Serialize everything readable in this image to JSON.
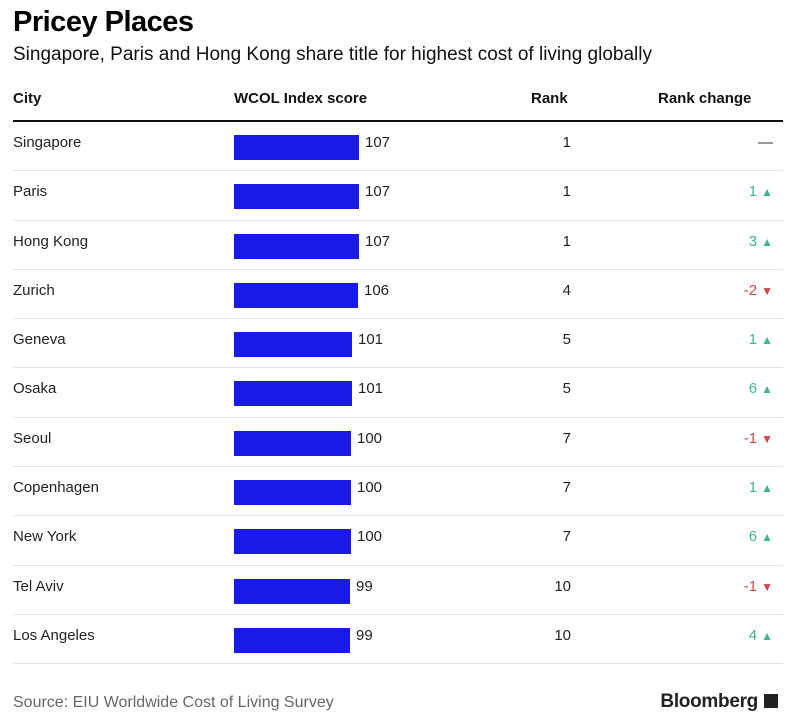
{
  "header": {
    "title": "Pricey Places",
    "subtitle": "Singapore, Paris and Hong Kong share title for highest cost of living globally"
  },
  "columns": {
    "city": "City",
    "score": "WCOL Index score",
    "rank": "Rank",
    "change": "Rank change"
  },
  "footer": {
    "source": "Source: EIU Worldwide Cost of Living Survey",
    "brand": "Bloomberg"
  },
  "colors": {
    "bar": "#1a1ae8",
    "up": "#3fb68b",
    "down": "#d64545"
  },
  "chart_data": {
    "type": "table",
    "title": "Pricey Places",
    "subtitle": "Singapore, Paris and Hong Kong share title for highest cost of living globally",
    "columns": [
      "City",
      "WCOL Index score",
      "Rank",
      "Rank change"
    ],
    "rows": [
      {
        "city": "Singapore",
        "score": 107,
        "rank": 1,
        "change": "—",
        "direction": "none"
      },
      {
        "city": "Paris",
        "score": 107,
        "rank": 1,
        "change": "1",
        "direction": "up"
      },
      {
        "city": "Hong Kong",
        "score": 107,
        "rank": 1,
        "change": "3",
        "direction": "up"
      },
      {
        "city": "Zurich",
        "score": 106,
        "rank": 4,
        "change": "-2",
        "direction": "down"
      },
      {
        "city": "Geneva",
        "score": 101,
        "rank": 5,
        "change": "1",
        "direction": "up"
      },
      {
        "city": "Osaka",
        "score": 101,
        "rank": 5,
        "change": "6",
        "direction": "up"
      },
      {
        "city": "Seoul",
        "score": 100,
        "rank": 7,
        "change": "-1",
        "direction": "down"
      },
      {
        "city": "Copenhagen",
        "score": 100,
        "rank": 7,
        "change": "1",
        "direction": "up"
      },
      {
        "city": "New York",
        "score": 100,
        "rank": 7,
        "change": "6",
        "direction": "up"
      },
      {
        "city": "Tel Aviv",
        "score": 99,
        "rank": 10,
        "change": "-1",
        "direction": "down"
      },
      {
        "city": "Los Angeles",
        "score": 99,
        "rank": 10,
        "change": "4",
        "direction": "up"
      }
    ],
    "source": "Source: EIU Worldwide Cost of Living Survey"
  }
}
